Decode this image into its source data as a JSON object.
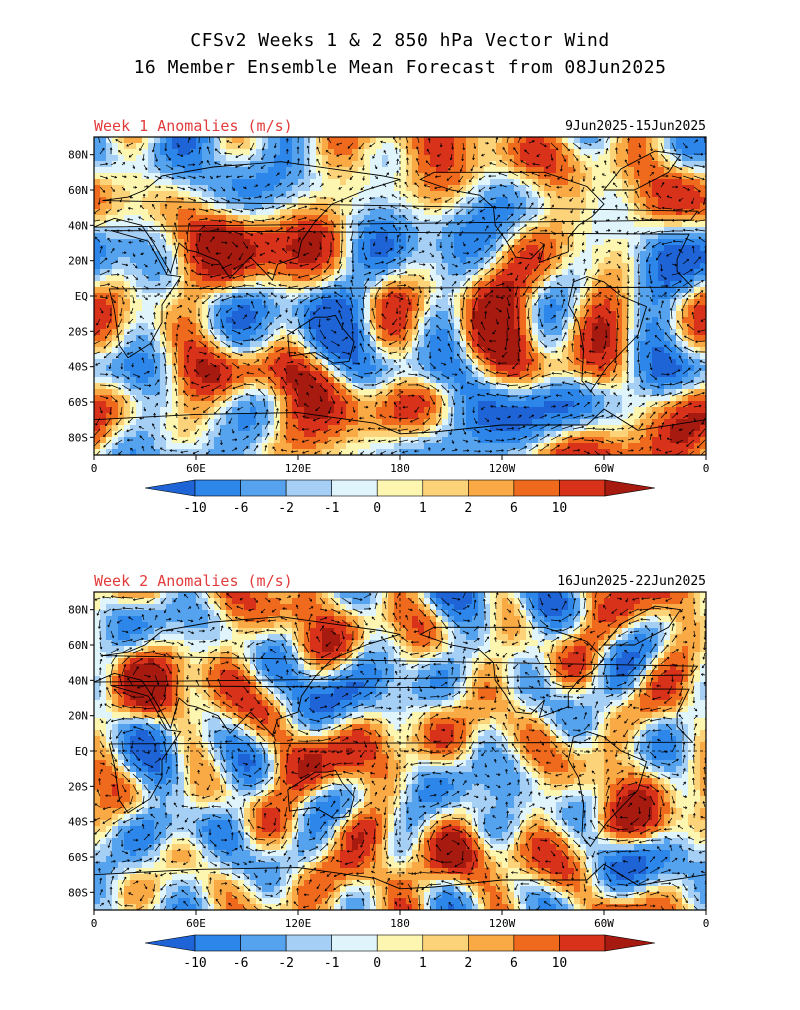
{
  "title": {
    "line1": "CFSv2 Weeks 1 & 2 850 hPa Vector Wind",
    "line2": "16 Member Ensemble Mean Forecast from 08Jun2025"
  },
  "panels": [
    {
      "label": "Week 1 Anomalies (m/s)",
      "dates": "9Jun2025-15Jun2025",
      "seed": 11
    },
    {
      "label": "Week 2 Anomalies (m/s)",
      "dates": "16Jun2025-22Jun2025",
      "seed": 47
    }
  ],
  "axes": {
    "lat_labels": [
      "80N",
      "60N",
      "40N",
      "20N",
      "EQ",
      "20S",
      "40S",
      "60S",
      "80S"
    ],
    "lon_labels": [
      "0",
      "60E",
      "120E",
      "180",
      "120W",
      "60W",
      "0"
    ]
  },
  "colorbar": {
    "labels": [
      "-10",
      "-6",
      "-2",
      "-1",
      "0",
      "1",
      "2",
      "6",
      "10"
    ],
    "colors": [
      "#1f64d6",
      "#2d86ea",
      "#55a3ee",
      "#a5cff5",
      "#dff4fb",
      "#fdf6b0",
      "#fdd37a",
      "#f9aa45",
      "#ef6a1d",
      "#d8321a",
      "#a71a10"
    ]
  }
}
